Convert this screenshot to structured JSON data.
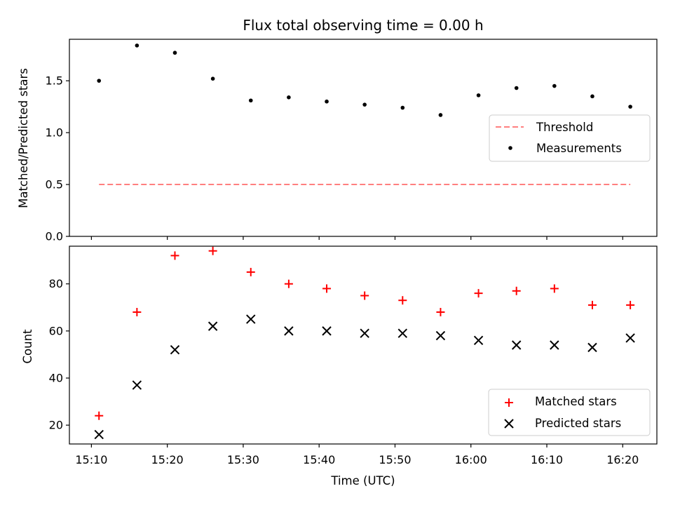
{
  "chart_data": [
    {
      "type": "scatter",
      "title": "Flux total observing time = 0.00 h",
      "ylabel": "Matched/Predicted stars",
      "xlabel": "",
      "ylim": [
        0,
        1.9
      ],
      "yticks": [
        0.0,
        0.5,
        1.0,
        1.5
      ],
      "ytick_labels": [
        "0.0",
        "0.5",
        "1.0",
        "1.5"
      ],
      "x": [
        "15:11",
        "15:16",
        "15:21",
        "15:26",
        "15:31",
        "15:36",
        "15:41",
        "15:46",
        "15:51",
        "15:56",
        "16:01",
        "16:06",
        "16:11",
        "16:16",
        "16:21"
      ],
      "series": [
        {
          "name": "Measurements",
          "marker": "dot",
          "color": "#000000",
          "values": [
            1.5,
            1.84,
            1.77,
            1.52,
            1.31,
            1.34,
            1.3,
            1.27,
            1.24,
            1.17,
            1.36,
            1.43,
            1.45,
            1.35,
            1.25
          ]
        },
        {
          "name": "Threshold",
          "marker": "dashed-line",
          "color": "#ff7f7f",
          "values": [
            0.5,
            0.5
          ]
        }
      ],
      "threshold_x_range": [
        "15:11",
        "16:21"
      ],
      "legend": [
        "Threshold",
        "Measurements"
      ],
      "legend_position": "center-right"
    },
    {
      "type": "scatter",
      "title": "",
      "ylabel": "Count",
      "xlabel": "Time (UTC)",
      "ylim": [
        12,
        96
      ],
      "yticks": [
        20,
        40,
        60,
        80
      ],
      "ytick_labels": [
        "20",
        "40",
        "60",
        "80"
      ],
      "xticks": [
        "15:10",
        "15:20",
        "15:30",
        "15:40",
        "15:50",
        "16:00",
        "16:10",
        "16:20"
      ],
      "x": [
        "15:11",
        "15:16",
        "15:21",
        "15:26",
        "15:31",
        "15:36",
        "15:41",
        "15:46",
        "15:51",
        "15:56",
        "16:01",
        "16:06",
        "16:11",
        "16:16",
        "16:21"
      ],
      "series": [
        {
          "name": "Matched stars",
          "marker": "plus",
          "color": "#ff0000",
          "values": [
            24,
            68,
            92,
            94,
            85,
            80,
            78,
            75,
            73,
            68,
            76,
            77,
            78,
            71,
            71
          ]
        },
        {
          "name": "Predicted stars",
          "marker": "x",
          "color": "#000000",
          "values": [
            16,
            37,
            52,
            62,
            65,
            60,
            60,
            59,
            59,
            58,
            56,
            54,
            54,
            53,
            57
          ]
        }
      ],
      "legend": [
        "Matched stars",
        "Predicted stars"
      ],
      "legend_position": "lower-right"
    }
  ]
}
